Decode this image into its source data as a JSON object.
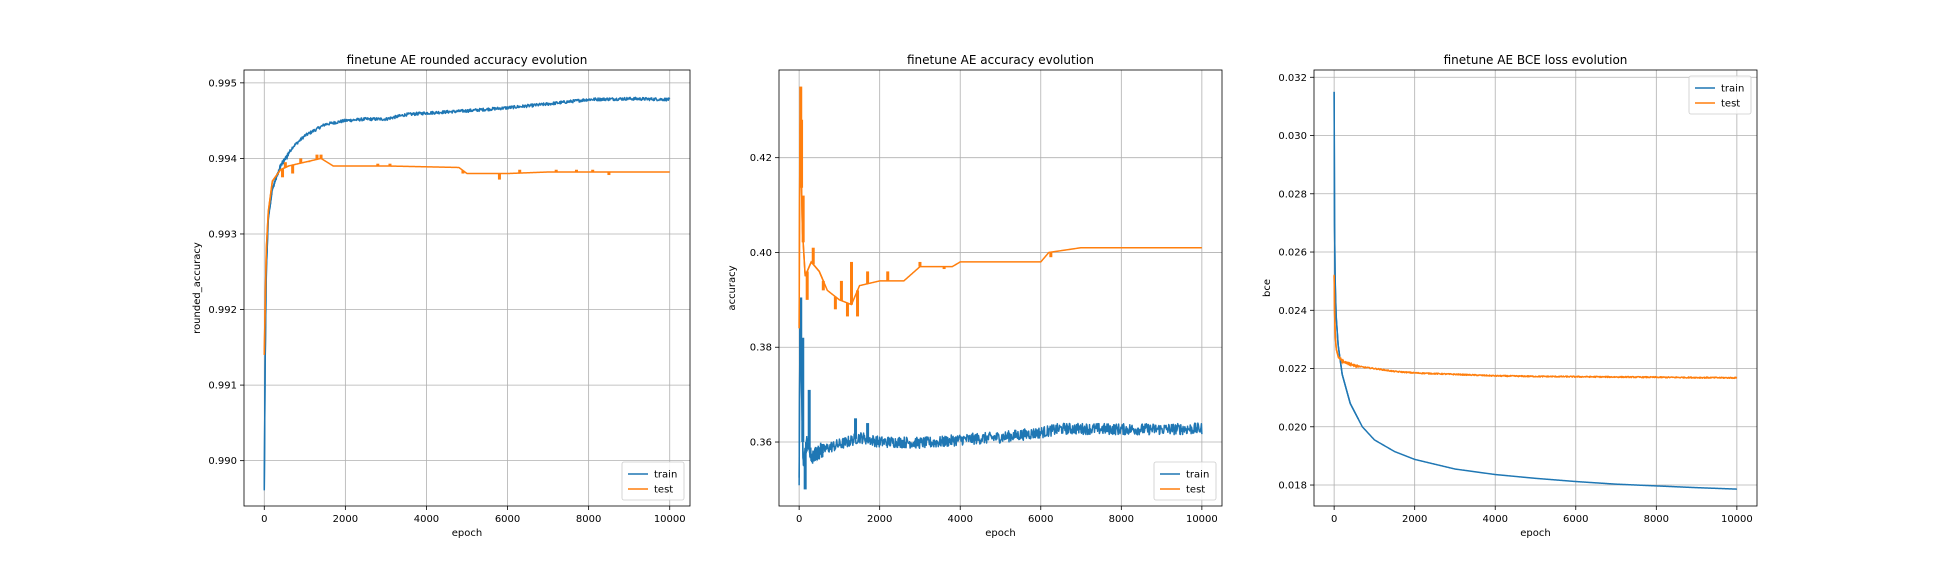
{
  "chart_data": [
    {
      "type": "line",
      "title": "finetune AE rounded accuracy evolution",
      "xlabel": "epoch",
      "ylabel": "rounded_accuracy",
      "xlim": [
        -500,
        10500
      ],
      "ylim": [
        0.9894,
        0.99517
      ],
      "xticks": [
        0,
        2000,
        4000,
        6000,
        8000,
        10000
      ],
      "yticks": [
        0.99,
        0.991,
        0.992,
        0.993,
        0.994,
        0.995
      ],
      "ytick_labels": [
        "0.990",
        "0.991",
        "0.992",
        "0.993",
        "0.994",
        "0.995"
      ],
      "grid": true,
      "legend_position": "lower-right",
      "series": [
        {
          "name": "train",
          "color": "#1f77b4",
          "noise": 2e-05,
          "points": [
            [
              0,
              0.9896
            ],
            [
              20,
              0.9912
            ],
            [
              50,
              0.9925
            ],
            [
              100,
              0.9932
            ],
            [
              200,
              0.9936
            ],
            [
              400,
              0.9939
            ],
            [
              700,
              0.99415
            ],
            [
              1000,
              0.9943
            ],
            [
              1500,
              0.99445
            ],
            [
              2000,
              0.9945
            ],
            [
              2500,
              0.99452
            ],
            [
              3000,
              0.99452
            ],
            [
              3500,
              0.99458
            ],
            [
              4000,
              0.9946
            ],
            [
              5000,
              0.99463
            ],
            [
              6000,
              0.99467
            ],
            [
              7000,
              0.99472
            ],
            [
              8000,
              0.99478
            ],
            [
              9000,
              0.99479
            ],
            [
              10000,
              0.99478
            ]
          ]
        },
        {
          "name": "test",
          "color": "#ff7f0e",
          "noise": 0.0,
          "points": [
            [
              0,
              0.9914
            ],
            [
              20,
              0.992
            ],
            [
              50,
              0.9928
            ],
            [
              100,
              0.9933
            ],
            [
              200,
              0.9937
            ],
            [
              400,
              0.99385
            ],
            [
              600,
              0.9939
            ],
            [
              1000,
              0.99395
            ],
            [
              1400,
              0.994
            ],
            [
              1700,
              0.9939
            ],
            [
              3000,
              0.9939
            ],
            [
              4800,
              0.99388
            ],
            [
              5000,
              0.9938
            ],
            [
              6000,
              0.9938
            ],
            [
              7000,
              0.99382
            ],
            [
              8000,
              0.99382
            ],
            [
              10000,
              0.99382
            ]
          ],
          "spikes": [
            [
              450,
              0.99375
            ],
            [
              520,
              0.99395
            ],
            [
              700,
              0.9938
            ],
            [
              900,
              0.994
            ],
            [
              1100,
              0.99395
            ],
            [
              1300,
              0.99405
            ],
            [
              1400,
              0.99405
            ],
            [
              2800,
              0.99393
            ],
            [
              3100,
              0.99393
            ],
            [
              4900,
              0.9938
            ],
            [
              5800,
              0.99372
            ],
            [
              6300,
              0.99385
            ],
            [
              7200,
              0.99385
            ],
            [
              7700,
              0.99385
            ],
            [
              8100,
              0.99385
            ],
            [
              8500,
              0.99378
            ]
          ]
        }
      ]
    },
    {
      "type": "line",
      "title": "finetune AE accuracy evolution",
      "xlabel": "epoch",
      "ylabel": "accuracy",
      "xlim": [
        -500,
        10500
      ],
      "ylim": [
        0.3465,
        0.4385
      ],
      "xticks": [
        0,
        2000,
        4000,
        6000,
        8000,
        10000
      ],
      "yticks": [
        0.36,
        0.38,
        0.4,
        0.42
      ],
      "ytick_labels": [
        "0.36",
        "0.38",
        "0.40",
        "0.42"
      ],
      "grid": true,
      "legend_position": "lower-right",
      "series": [
        {
          "name": "train",
          "color": "#1f77b4",
          "noise": 0.0012,
          "points": [
            [
              0,
              0.352
            ],
            [
              20,
              0.385
            ],
            [
              60,
              0.372
            ],
            [
              100,
              0.356
            ],
            [
              200,
              0.36
            ],
            [
              300,
              0.357
            ],
            [
              500,
              0.358
            ],
            [
              800,
              0.359
            ],
            [
              1200,
              0.36
            ],
            [
              1500,
              0.361
            ],
            [
              2000,
              0.36
            ],
            [
              2500,
              0.36
            ],
            [
              3000,
              0.3598
            ],
            [
              3500,
              0.36
            ],
            [
              4000,
              0.3605
            ],
            [
              5000,
              0.361
            ],
            [
              6000,
              0.362
            ],
            [
              6500,
              0.3628
            ],
            [
              7000,
              0.3628
            ],
            [
              8000,
              0.3627
            ],
            [
              9000,
              0.3627
            ],
            [
              10000,
              0.3628
            ]
          ],
          "spikes": [
            [
              40,
              0.3905
            ],
            [
              90,
              0.382
            ],
            [
              150,
              0.35
            ],
            [
              250,
              0.371
            ],
            [
              1400,
              0.365
            ],
            [
              1700,
              0.364
            ],
            [
              6300,
              0.3635
            ],
            [
              6600,
              0.3635
            ]
          ]
        },
        {
          "name": "test",
          "color": "#ff7f0e",
          "noise": 0.0,
          "points": [
            [
              0,
              0.384
            ],
            [
              15,
              0.42
            ],
            [
              30,
              0.432
            ],
            [
              50,
              0.418
            ],
            [
              80,
              0.405
            ],
            [
              150,
              0.395
            ],
            [
              300,
              0.398
            ],
            [
              500,
              0.396
            ],
            [
              700,
              0.392
            ],
            [
              1000,
              0.39
            ],
            [
              1300,
              0.389
            ],
            [
              1500,
              0.393
            ],
            [
              2000,
              0.394
            ],
            [
              2600,
              0.394
            ],
            [
              3000,
              0.397
            ],
            [
              3800,
              0.397
            ],
            [
              4000,
              0.398
            ],
            [
              6000,
              0.398
            ],
            [
              6200,
              0.4
            ],
            [
              7000,
              0.401
            ],
            [
              10000,
              0.401
            ]
          ],
          "spikes": [
            [
              40,
              0.435
            ],
            [
              60,
              0.428
            ],
            [
              100,
              0.412
            ],
            [
              200,
              0.39
            ],
            [
              350,
              0.401
            ],
            [
              600,
              0.392
            ],
            [
              900,
              0.388
            ],
            [
              1050,
              0.394
            ],
            [
              1200,
              0.3865
            ],
            [
              1300,
              0.398
            ],
            [
              1450,
              0.3865
            ],
            [
              1700,
              0.396
            ],
            [
              2200,
              0.396
            ],
            [
              2500,
              0.394
            ],
            [
              3000,
              0.398
            ],
            [
              3600,
              0.3965
            ],
            [
              6250,
              0.399
            ],
            [
              6700,
              0.4005
            ]
          ]
        }
      ]
    },
    {
      "type": "line",
      "title": "finetune AE BCE loss evolution",
      "xlabel": "epoch",
      "ylabel": "bce",
      "xlim": [
        -500,
        10500
      ],
      "ylim": [
        0.01728,
        0.03225
      ],
      "xticks": [
        0,
        2000,
        4000,
        6000,
        8000,
        10000
      ],
      "yticks": [
        0.018,
        0.02,
        0.022,
        0.024,
        0.026,
        0.028,
        0.03,
        0.032
      ],
      "ytick_labels": [
        "0.018",
        "0.020",
        "0.022",
        "0.024",
        "0.026",
        "0.028",
        "0.030",
        "0.032"
      ],
      "grid": true,
      "legend_position": "upper-right",
      "series": [
        {
          "name": "train",
          "color": "#1f77b4",
          "noise": 0.0,
          "points": [
            [
              0,
              0.0315
            ],
            [
              10,
              0.027
            ],
            [
              25,
              0.025
            ],
            [
              50,
              0.0238
            ],
            [
              100,
              0.0228
            ],
            [
              200,
              0.0218
            ],
            [
              400,
              0.0208
            ],
            [
              700,
              0.02
            ],
            [
              1000,
              0.01955
            ],
            [
              1500,
              0.01915
            ],
            [
              2000,
              0.01888
            ],
            [
              3000,
              0.01855
            ],
            [
              4000,
              0.01836
            ],
            [
              5000,
              0.01823
            ],
            [
              6000,
              0.01812
            ],
            [
              7000,
              0.01803
            ],
            [
              8000,
              0.01797
            ],
            [
              9000,
              0.01791
            ],
            [
              10000,
              0.01786
            ]
          ]
        },
        {
          "name": "test",
          "color": "#ff7f0e",
          "noise": 2e-05,
          "points": [
            [
              0,
              0.0252
            ],
            [
              10,
              0.024
            ],
            [
              25,
              0.0232
            ],
            [
              50,
              0.0227
            ],
            [
              100,
              0.0224
            ],
            [
              200,
              0.02225
            ],
            [
              400,
              0.02215
            ],
            [
              700,
              0.02205
            ],
            [
              1000,
              0.022
            ],
            [
              1500,
              0.0219
            ],
            [
              2000,
              0.02185
            ],
            [
              3000,
              0.0218
            ],
            [
              4000,
              0.02175
            ],
            [
              5000,
              0.02173
            ],
            [
              6000,
              0.02172
            ],
            [
              7000,
              0.02171
            ],
            [
              8000,
              0.0217
            ],
            [
              9000,
              0.02169
            ],
            [
              10000,
              0.02168
            ]
          ]
        }
      ]
    }
  ]
}
